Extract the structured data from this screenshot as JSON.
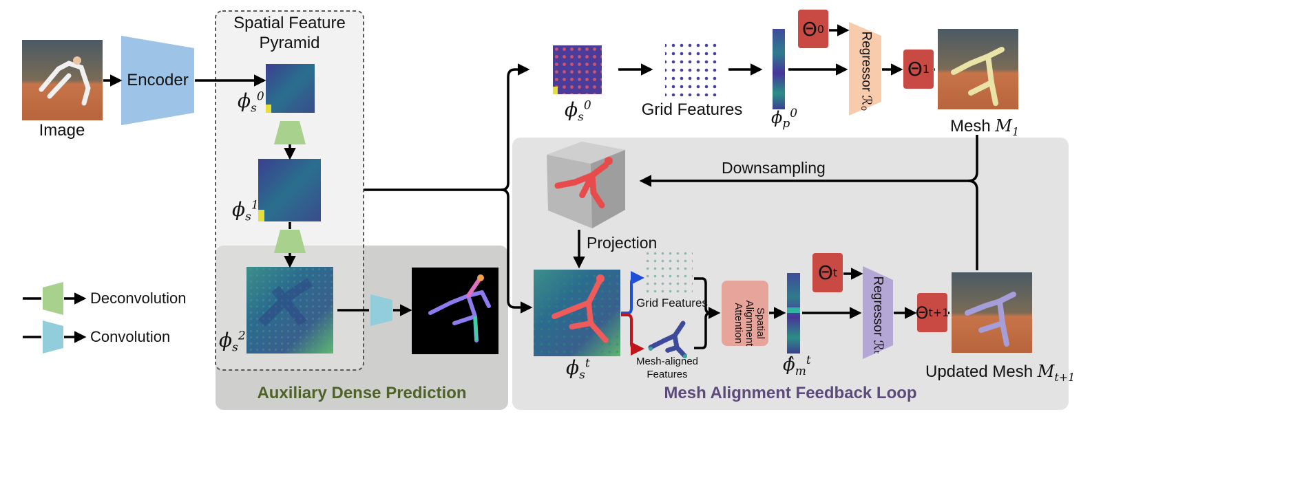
{
  "labels": {
    "image": "Image",
    "encoder": "Encoder",
    "spatial_pyramid_line1": "Spatial Feature",
    "spatial_pyramid_line2": "Pyramid",
    "grid_features_top": "Grid Features",
    "mesh_m1": "Mesh ",
    "mesh_m1_sym": "M",
    "mesh_m1_sub": "1",
    "downsampling": "Downsampling",
    "projection": "Projection",
    "grid_features_small": "Grid Features",
    "mesh_aligned_line1": "Mesh-aligned",
    "mesh_aligned_line2": "Features",
    "saa_line1": "Spatial",
    "saa_line2": "Alignment",
    "saa_line3": "Attention",
    "updated_mesh": "Updated Mesh ",
    "updated_mesh_sym": "M",
    "updated_mesh_sub": "t+1",
    "legend_deconv": "Deconvolution",
    "legend_conv": "Convolution",
    "aux_dense": "Auxiliary Dense Prediction",
    "feedback_loop": "Mesh Alignment Feedback Loop",
    "regressor_0": "Regressor ℛ₀",
    "regressor_t": "Regressor ℛₜ"
  },
  "symbols": {
    "phi": "ϕ",
    "phi_hat": "ϕ̂",
    "s": "s",
    "p": "p",
    "m": "m",
    "sup0": "0",
    "sup1": "1",
    "sup2": "2",
    "supt": "t",
    "theta0": "Θ",
    "theta0_sub": "0",
    "theta1": "Θ",
    "theta1_sub": "1",
    "thetat": "Θ",
    "thetat_sub": "t",
    "thetat1": "Θ",
    "thetat1_sub": "t+1"
  },
  "colors": {
    "encoder": "#9dc3e6",
    "deconv": "#a9d18e",
    "conv": "#92cddc",
    "regressor_0": "#f8cbad",
    "regressor_t": "#b4a7d6",
    "theta": "#c84a43",
    "saa": "#e6a49b",
    "aux_title": "#4f6228",
    "loop_title": "#5b4a7a",
    "panel_gray": "#e3e3e3",
    "aux_panel": "#cfcfcd"
  }
}
